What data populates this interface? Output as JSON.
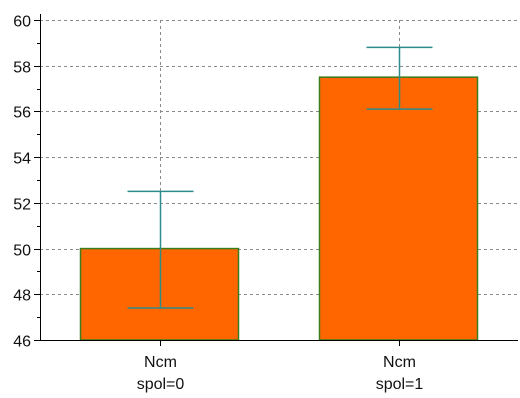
{
  "chart_data": {
    "type": "bar",
    "title": "",
    "xlabel": "",
    "ylabel": "",
    "categories": [
      {
        "line1": "Ncm",
        "line2": "spol=0"
      },
      {
        "line1": "Ncm",
        "line2": "spol=1"
      }
    ],
    "values": [
      50.0,
      57.5
    ],
    "error_bars": [
      {
        "lower": 47.4,
        "upper": 52.5
      },
      {
        "lower": 56.1,
        "upper": 58.8
      }
    ],
    "y_baseline": 46,
    "ylim": [
      46,
      60
    ],
    "yticks": [
      46,
      48,
      50,
      52,
      54,
      56,
      58,
      60
    ],
    "grid": true,
    "legend": "none",
    "colors": {
      "bar_fill": "#FF6600",
      "bar_stroke": "#3A7D1E",
      "error_bar": "#2E8B8B",
      "grid": "#8A8A8A",
      "axis": "#000000"
    }
  }
}
